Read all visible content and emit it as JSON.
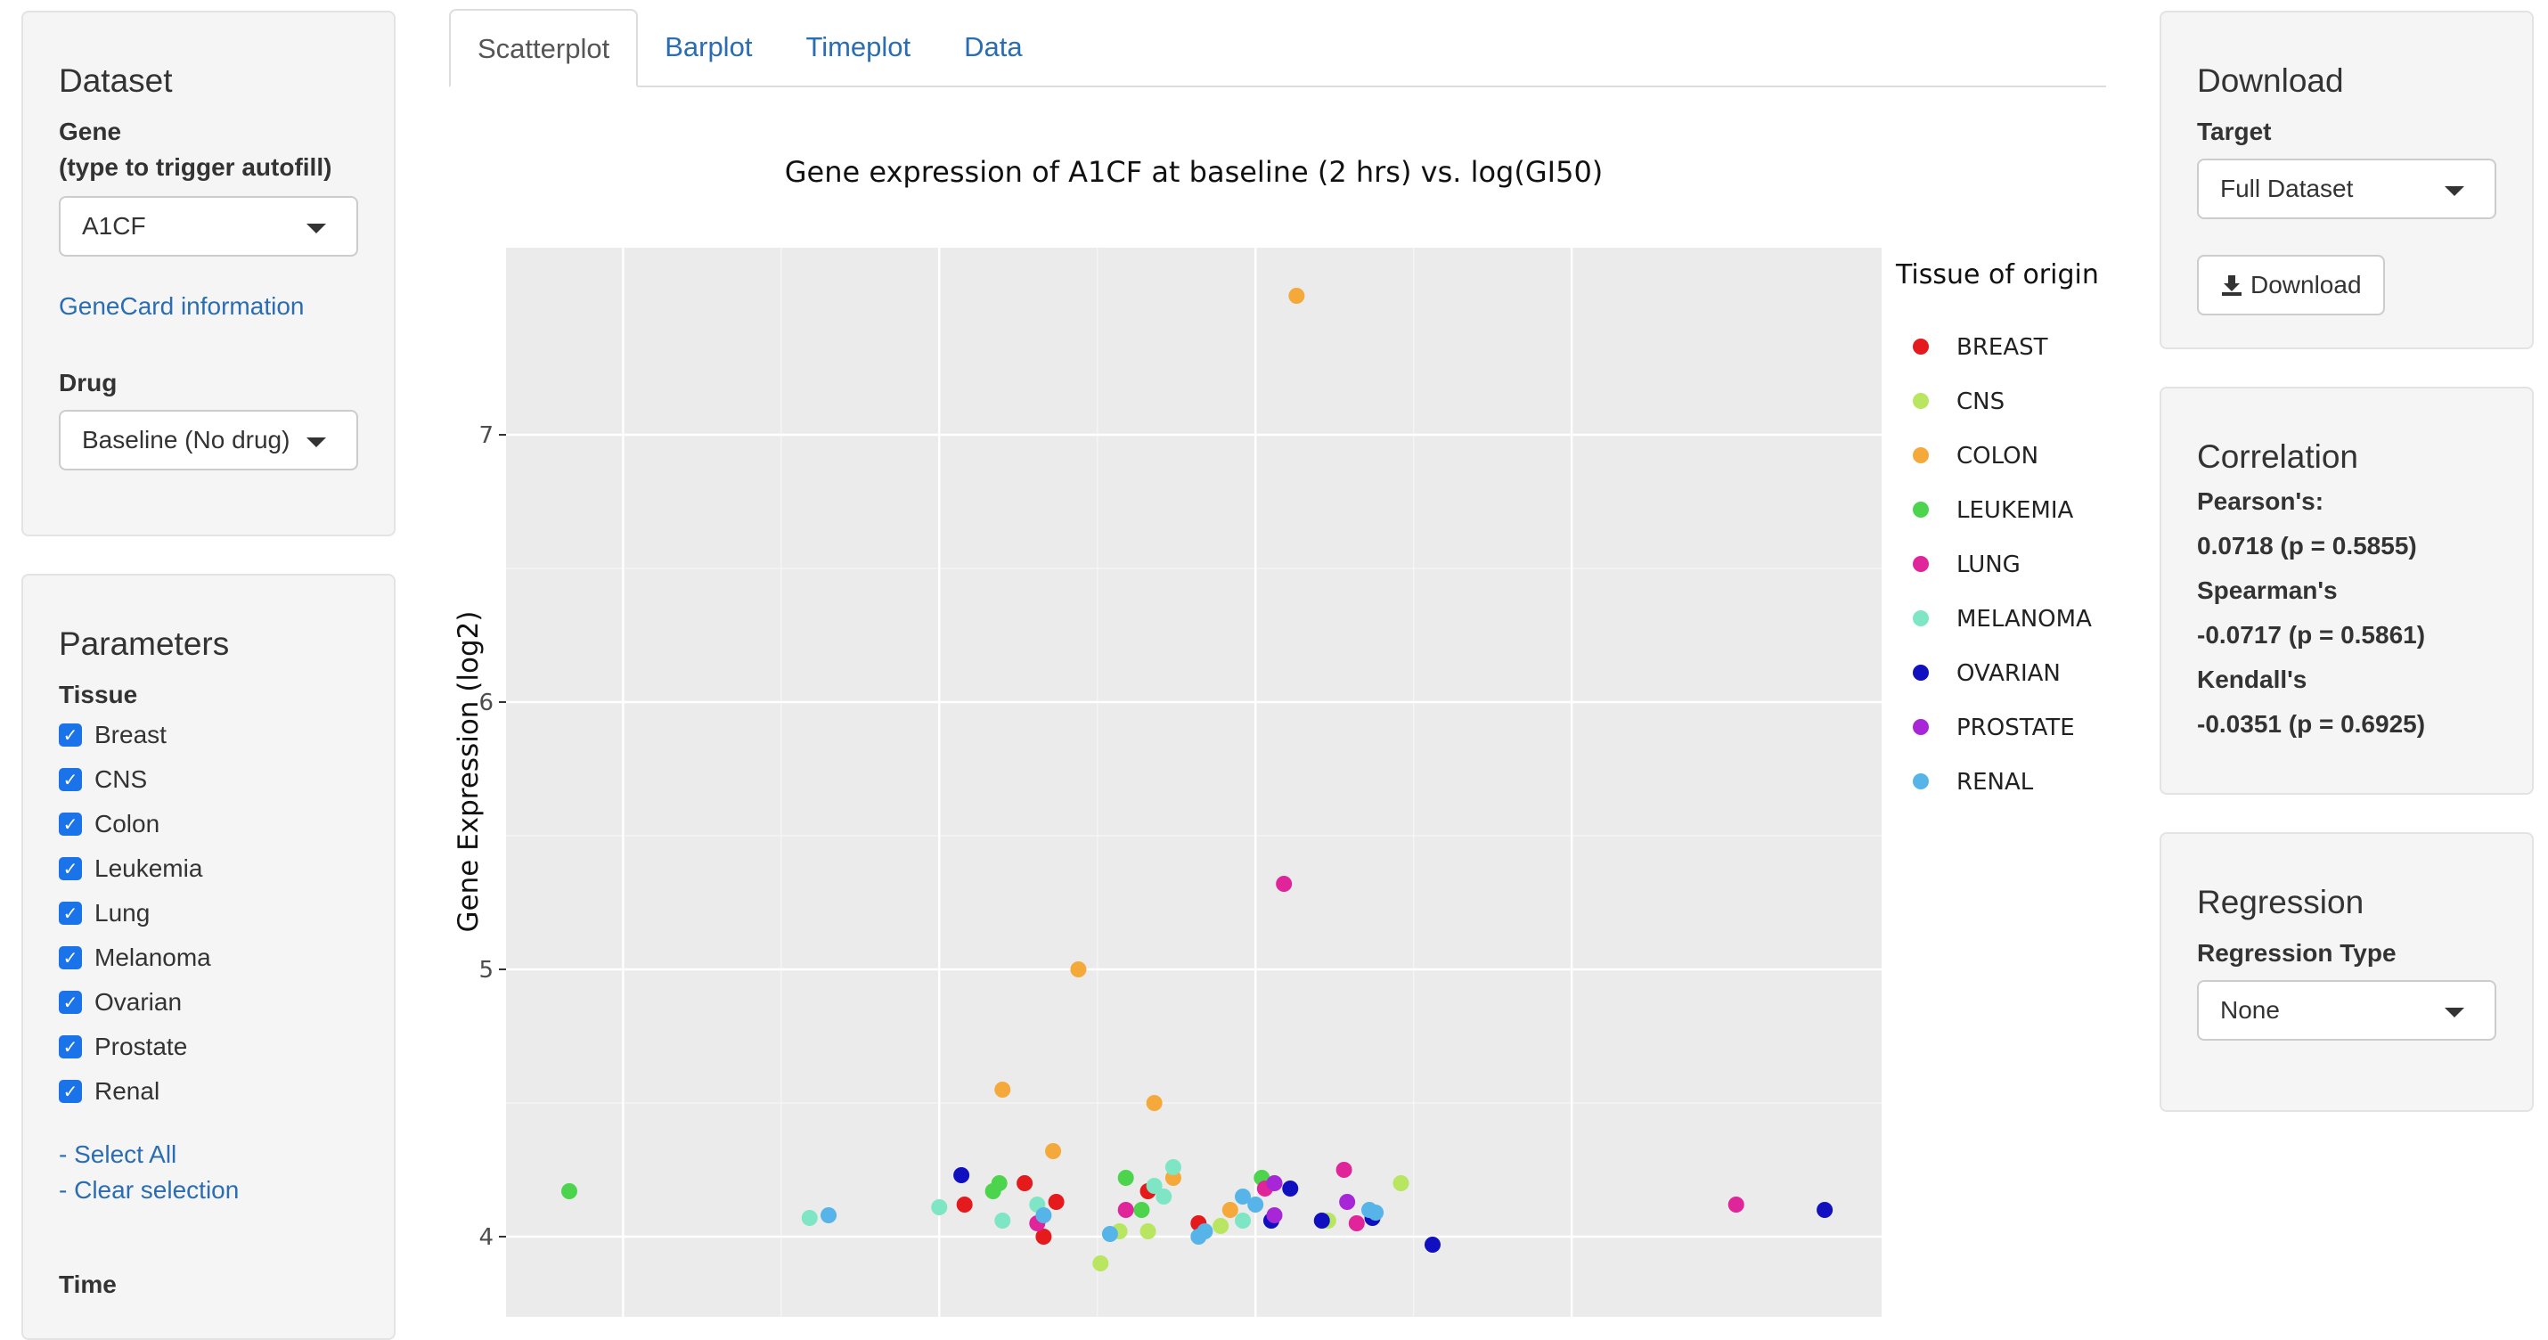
{
  "left": {
    "dataset": {
      "title": "Dataset",
      "gene_label": "Gene",
      "gene_hint": "(type to trigger autofill)",
      "gene_value": "A1CF",
      "genecard_link": "GeneCard information",
      "drug_label": "Drug",
      "drug_value": "Baseline (No drug)"
    },
    "parameters": {
      "title": "Parameters",
      "tissue_label": "Tissue",
      "tissues": [
        "Breast",
        "CNS",
        "Colon",
        "Leukemia",
        "Lung",
        "Melanoma",
        "Ovarian",
        "Prostate",
        "Renal"
      ],
      "select_all": "- Select All",
      "clear_selection": "- Clear selection",
      "time_label": "Time"
    }
  },
  "tabs": [
    "Scatterplot",
    "Barplot",
    "Timeplot",
    "Data"
  ],
  "right": {
    "download": {
      "title": "Download",
      "target_label": "Target",
      "target_value": "Full Dataset",
      "button": "Download"
    },
    "correlation": {
      "title": "Correlation",
      "pearson_label": "Pearson's:",
      "pearson_value": "0.0718 (p = 0.5855)",
      "spearman_label": "Spearman's",
      "spearman_value": "-0.0717 (p = 0.5861)",
      "kendall_label": "Kendall's",
      "kendall_value": "-0.0351 (p = 0.6925)"
    },
    "regression": {
      "title": "Regression",
      "type_label": "Regression Type",
      "type_value": "None"
    }
  },
  "chart_data": {
    "type": "scatter",
    "title": "Gene expression of A1CF at baseline (2 hrs) vs. log(GI50)",
    "xlabel": "",
    "ylabel": "Gene Expression (log2)",
    "xlim": [
      0,
      4.35
    ],
    "ylim": [
      3.7,
      7.7
    ],
    "y_ticks": [
      4,
      5,
      6,
      7
    ],
    "y_tick_labels": [
      "4",
      "5",
      "6",
      "7"
    ],
    "x_ticks": [
      0.37,
      1.37,
      2.37,
      3.37
    ],
    "grid": true,
    "legend_title": "Tissue of origin",
    "legend_position": "right",
    "series": [
      {
        "name": "BREAST",
        "color": "#e41a1c",
        "points": [
          [
            1.45,
            4.12
          ],
          [
            1.64,
            4.2
          ],
          [
            1.7,
            4.0
          ],
          [
            1.74,
            4.13
          ],
          [
            2.03,
            4.17
          ],
          [
            2.19,
            4.05
          ]
        ]
      },
      {
        "name": "CNS",
        "color": "#b8e660",
        "points": [
          [
            1.88,
            3.9
          ],
          [
            1.94,
            4.02
          ],
          [
            2.03,
            4.02
          ],
          [
            2.26,
            4.04
          ],
          [
            2.6,
            4.06
          ],
          [
            2.83,
            4.2
          ]
        ]
      },
      {
        "name": "COLON",
        "color": "#f4a93a",
        "points": [
          [
            1.57,
            4.55
          ],
          [
            1.73,
            4.32
          ],
          [
            1.81,
            5.0
          ],
          [
            2.05,
            4.5
          ],
          [
            2.11,
            4.22
          ],
          [
            2.29,
            4.1
          ],
          [
            2.5,
            7.52
          ]
        ]
      },
      {
        "name": "LEUKEMIA",
        "color": "#4cd44c",
        "points": [
          [
            0.2,
            4.17
          ],
          [
            1.54,
            4.17
          ],
          [
            1.56,
            4.2
          ],
          [
            1.96,
            4.22
          ],
          [
            2.01,
            4.1
          ],
          [
            2.39,
            4.22
          ]
        ]
      },
      {
        "name": "LUNG",
        "color": "#e0249a",
        "points": [
          [
            1.68,
            4.05
          ],
          [
            1.96,
            4.1
          ],
          [
            2.4,
            4.18
          ],
          [
            2.46,
            5.32
          ],
          [
            2.65,
            4.25
          ],
          [
            2.69,
            4.05
          ],
          [
            3.89,
            4.12
          ]
        ]
      },
      {
        "name": "MELANOMA",
        "color": "#7ee6c4",
        "points": [
          [
            0.96,
            4.07
          ],
          [
            1.37,
            4.11
          ],
          [
            1.57,
            4.06
          ],
          [
            1.68,
            4.12
          ],
          [
            2.05,
            4.19
          ],
          [
            2.08,
            4.15
          ],
          [
            2.11,
            4.26
          ],
          [
            2.33,
            4.06
          ]
        ]
      },
      {
        "name": "OVARIAN",
        "color": "#1010c0",
        "points": [
          [
            1.44,
            4.23
          ],
          [
            2.42,
            4.06
          ],
          [
            2.48,
            4.18
          ],
          [
            2.58,
            4.06
          ],
          [
            2.74,
            4.07
          ],
          [
            2.93,
            3.97
          ],
          [
            4.17,
            4.1
          ]
        ]
      },
      {
        "name": "PROSTATE",
        "color": "#a626d8",
        "points": [
          [
            2.43,
            4.08
          ],
          [
            2.66,
            4.13
          ],
          [
            2.43,
            4.2
          ]
        ]
      },
      {
        "name": "RENAL",
        "color": "#56b4e9",
        "points": [
          [
            1.02,
            4.08
          ],
          [
            1.7,
            4.08
          ],
          [
            1.91,
            4.01
          ],
          [
            2.19,
            4.0
          ],
          [
            2.21,
            4.02
          ],
          [
            2.33,
            4.15
          ],
          [
            2.37,
            4.12
          ],
          [
            2.73,
            4.1
          ],
          [
            2.75,
            4.09
          ]
        ]
      }
    ]
  }
}
